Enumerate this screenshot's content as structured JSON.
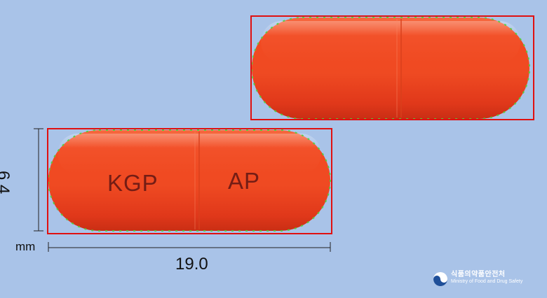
{
  "image": {
    "subject": "orange-red capsule, two views",
    "background_color": "#a9c3e8"
  },
  "capsule_left": {
    "imprint_left_half": "KGP",
    "imprint_right_half": "AP",
    "color": "#f04a24"
  },
  "capsule_right": {
    "color": "#f04a24"
  },
  "dimensions": {
    "width_value": "19.0",
    "height_value": "6.4",
    "unit": "mm"
  },
  "logo": {
    "korean_name": "식품의약품안전처",
    "english_name": "Ministry of Food and Drug Safety"
  }
}
